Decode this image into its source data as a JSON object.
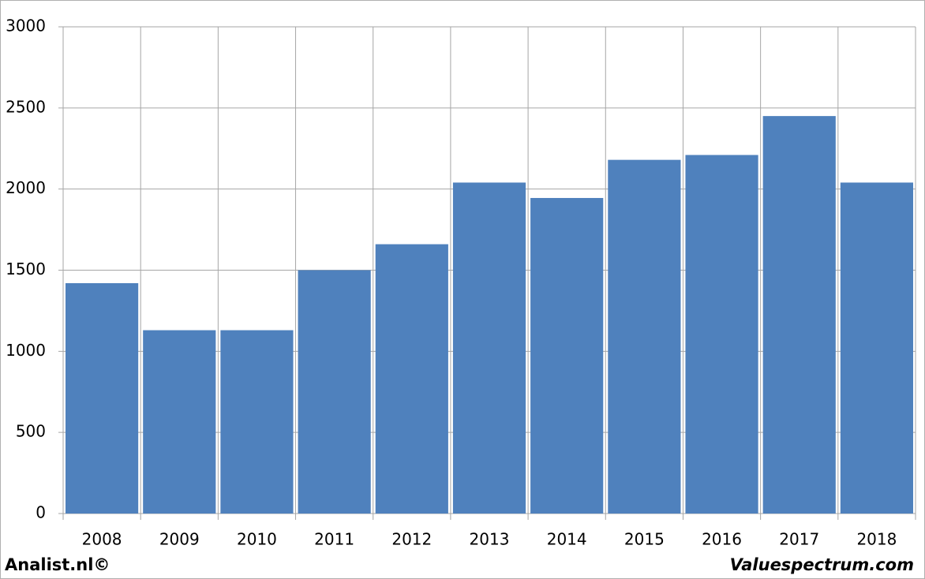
{
  "chart_data": {
    "type": "bar",
    "categories": [
      "2008",
      "2009",
      "2010",
      "2011",
      "2012",
      "2013",
      "2014",
      "2015",
      "2016",
      "2017",
      "2018"
    ],
    "values": [
      1420,
      1130,
      1130,
      1500,
      1660,
      2040,
      1945,
      2180,
      2210,
      2450,
      2040
    ],
    "color": "#4f81bd",
    "ylim": [
      0,
      3000
    ],
    "yticks": [
      0,
      500,
      1000,
      1500,
      2000,
      2500,
      3000
    ],
    "grid": true
  },
  "footer": {
    "left": "Analist.nl©",
    "right": "Valuespectrum.com"
  }
}
